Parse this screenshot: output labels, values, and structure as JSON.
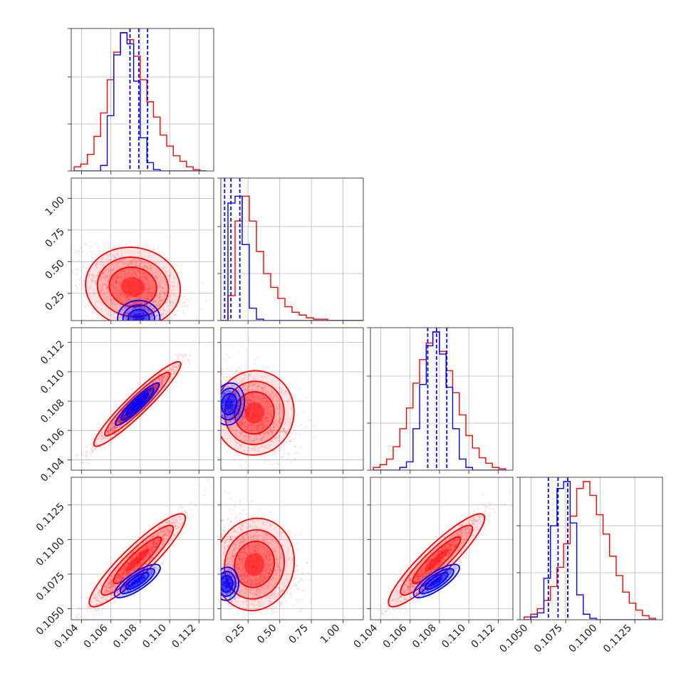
{
  "chart_data": {
    "type": "corner",
    "grid": true,
    "colors": {
      "red": "#ff0000",
      "blue": "#0000ff"
    },
    "parameters": [
      {
        "ticks": [
          0.104,
          0.106,
          0.108,
          0.11,
          0.112
        ],
        "tick_labels": [
          "0.104",
          "0.106",
          "0.108",
          "0.110",
          "0.112"
        ],
        "range": [
          0.1033,
          0.113
        ]
      },
      {
        "ticks": [
          0.25,
          0.5,
          0.75,
          1.0
        ],
        "tick_labels": [
          "0.25",
          "0.50",
          "0.75",
          "1.00"
        ],
        "range": [
          0.035,
          1.16
        ]
      },
      {
        "ticks": [
          0.104,
          0.106,
          0.108,
          0.11,
          0.112
        ],
        "tick_labels": [
          "0.104",
          "0.106",
          "0.108",
          "0.110",
          "0.112"
        ],
        "range": [
          0.1033,
          0.113
        ]
      },
      {
        "ticks": [
          0.105,
          0.1075,
          0.11,
          0.1125
        ],
        "tick_labels": [
          "0.1050",
          "0.1075",
          "0.1100",
          "0.1125"
        ],
        "range": [
          0.1042,
          0.1145
        ]
      }
    ],
    "series": [
      {
        "color": "red",
        "hist": [
          [
            0.03,
            0.05,
            0.12,
            0.25,
            0.42,
            0.66,
            0.86,
            1.0,
            0.95,
            0.83,
            0.66,
            0.5,
            0.39,
            0.26,
            0.18,
            0.11,
            0.07,
            0.03,
            0.01,
            0.0
          ],
          [
            0.0,
            0.18,
            0.72,
            0.9,
            0.72,
            0.5,
            0.34,
            0.24,
            0.16,
            0.1,
            0.06,
            0.04,
            0.02,
            0.01,
            0.01,
            0.0,
            0.0,
            0.0,
            0.0,
            0.0
          ],
          [
            0.02,
            0.04,
            0.08,
            0.17,
            0.3,
            0.45,
            0.63,
            0.8,
            0.92,
            1.0,
            0.86,
            0.72,
            0.56,
            0.4,
            0.25,
            0.16,
            0.09,
            0.05,
            0.02,
            0.01
          ],
          [
            0.02,
            0.04,
            0.08,
            0.14,
            0.24,
            0.38,
            0.55,
            0.75,
            0.95,
            1.0,
            0.9,
            0.76,
            0.62,
            0.46,
            0.32,
            0.2,
            0.12,
            0.07,
            0.03,
            0.01
          ]
        ],
        "hist_ranges": [
          [
            0.1035,
            0.1125
          ],
          [
            0.035,
            1.16
          ],
          [
            0.1035,
            0.1125
          ],
          [
            0.1045,
            0.114
          ]
        ],
        "pairs": [
          {
            "row": 1,
            "col": 0,
            "mean": [
              0.1075,
              0.3
            ],
            "sd": [
              0.00135,
              0.13
            ],
            "rho": -0.35,
            "contours": [
              [
                0.1075,
                0.28,
                0.002,
                0.12,
                -0.3
              ],
              [
                0.1076,
                0.28,
                0.0028,
                0.17,
                -0.3
              ],
              [
                0.1077,
                0.3,
                0.0036,
                0.23,
                -0.3
              ]
            ]
          },
          {
            "row": 2,
            "col": 0,
            "mean": [
              0.1078,
              0.1078
            ],
            "sd": [
              0.0012,
              0.0012
            ],
            "rho": 0.97
          },
          {
            "row": 2,
            "col": 1,
            "mean": [
              0.3,
              0.1072
            ],
            "sd": [
              0.13,
              0.0012
            ],
            "rho": -0.35
          },
          {
            "row": 3,
            "col": 0,
            "mean": [
              0.1078,
              0.1085
            ],
            "sd": [
              0.0013,
              0.0014
            ],
            "rho": 0.95
          },
          {
            "row": 3,
            "col": 1,
            "mean": [
              0.3,
              0.1082
            ],
            "sd": [
              0.13,
              0.0014
            ],
            "rho": -0.35
          },
          {
            "row": 3,
            "col": 2,
            "mean": [
              0.1078,
              0.1085
            ],
            "sd": [
              0.0013,
              0.0014
            ],
            "rho": 0.95
          }
        ]
      },
      {
        "color": "blue",
        "hist": [
          [
            0.0,
            0.0,
            0.0,
            0.0,
            0.04,
            0.4,
            0.84,
            1.0,
            0.92,
            0.65,
            0.24,
            0.06,
            0.01,
            0.0,
            0.0,
            0.0,
            0.0,
            0.0,
            0.0,
            0.0
          ],
          [
            0.0,
            0.85,
            0.9,
            0.55,
            0.09,
            0.01,
            0.0,
            0.0,
            0.0,
            0.0,
            0.0,
            0.0,
            0.0,
            0.0,
            0.0,
            0.0,
            0.0,
            0.0,
            0.0,
            0.0
          ],
          [
            0.0,
            0.0,
            0.0,
            0.0,
            0.02,
            0.06,
            0.3,
            0.62,
            0.9,
            1.0,
            0.84,
            0.6,
            0.3,
            0.08,
            0.02,
            0.0,
            0.0,
            0.0,
            0.0,
            0.0
          ],
          [
            0.0,
            0.02,
            0.05,
            0.3,
            0.68,
            0.95,
            1.0,
            0.7,
            0.18,
            0.04,
            0.01,
            0.0,
            0.0,
            0.0,
            0.0,
            0.0,
            0.0,
            0.0,
            0.0,
            0.0
          ]
        ],
        "hist_ranges": [
          [
            0.1035,
            0.1125
          ],
          [
            0.035,
            1.16
          ],
          [
            0.1035,
            0.1125
          ],
          [
            0.1045,
            0.114
          ]
        ],
        "quantile_lines": [
          [
            0.1073,
            0.1079,
            0.1085
          ],
          [
            0.065,
            0.115,
            0.185
          ],
          [
            0.1072,
            0.1078,
            0.1085
          ],
          [
            0.10625,
            0.10695,
            0.10765
          ]
        ],
        "pairs": [
          {
            "row": 1,
            "col": 0,
            "mean": [
              0.1079,
              0.05
            ],
            "sd": [
              0.0006,
              0.06
            ],
            "rho": 0.0,
            "contours": [
              [
                0.108,
                0.07,
                0.001,
                0.07,
                -0.4
              ],
              [
                0.108,
                0.09,
                0.0014,
                0.1,
                -0.4
              ],
              [
                0.1081,
                0.11,
                0.0018,
                0.13,
                -0.4
              ]
            ]
          },
          {
            "row": 2,
            "col": 0,
            "mean": [
              0.1078,
              0.1078
            ],
            "sd": [
              0.0006,
              0.0006
            ],
            "rho": 0.96
          },
          {
            "row": 2,
            "col": 1,
            "mean": [
              0.1,
              0.1078
            ],
            "sd": [
              0.05,
              0.0006
            ],
            "rho": -0.2
          },
          {
            "row": 3,
            "col": 0,
            "mean": [
              0.1078,
              0.107
            ],
            "sd": [
              0.0006,
              0.0005
            ],
            "rho": 0.85
          },
          {
            "row": 3,
            "col": 1,
            "mean": [
              0.08,
              0.1068
            ],
            "sd": [
              0.04,
              0.0005
            ],
            "rho": -0.1
          },
          {
            "row": 3,
            "col": 2,
            "mean": [
              0.1078,
              0.107
            ],
            "sd": [
              0.0006,
              0.0005
            ],
            "rho": 0.85
          }
        ]
      }
    ]
  }
}
